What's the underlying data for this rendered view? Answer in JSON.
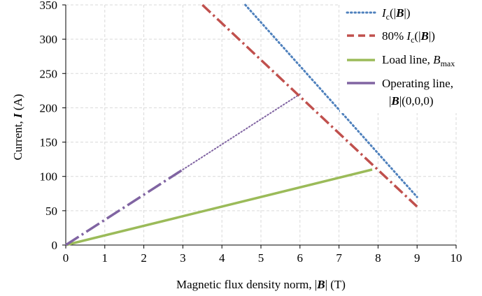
{
  "chart_data": {
    "type": "line",
    "title": "",
    "xlabel": {
      "prefix": "Magnetic flux density norm, |",
      "symbol": "B",
      "suffix": "| (T)"
    },
    "ylabel": {
      "prefix": "Current, ",
      "symbol": "I",
      "suffix": " (A)"
    },
    "xlim": [
      0,
      10
    ],
    "ylim": [
      0,
      350
    ],
    "xticks": [
      0,
      1,
      2,
      3,
      4,
      5,
      6,
      7,
      8,
      9,
      10
    ],
    "yticks": [
      0,
      50,
      100,
      150,
      200,
      250,
      300,
      350
    ],
    "grid": true,
    "legend_position": "top-right",
    "series": [
      {
        "key": "ic",
        "legend": {
          "a": "I",
          "sub": "c",
          "b": "(|",
          "bold": "B",
          "c": "|)"
        },
        "color": "#4f81bd",
        "style": "dotted",
        "x": [
          4.6,
          9.0
        ],
        "y": [
          350,
          70
        ]
      },
      {
        "key": "ic80",
        "legend": {
          "pre": "80% ",
          "a": "I",
          "sub": "c",
          "b": "(|",
          "bold": "B",
          "c": "|)"
        },
        "color": "#c0504d",
        "style": "dash-dot",
        "x": [
          3.5,
          9.0
        ],
        "y": [
          350,
          56
        ]
      },
      {
        "key": "load",
        "legend": {
          "text": "Load line, ",
          "a": "B",
          "sub": "max"
        },
        "color": "#9bbb59",
        "style": "solid",
        "x": [
          0,
          7.85
        ],
        "y": [
          0,
          110
        ]
      },
      {
        "key": "operating",
        "legend": {
          "text": "Operating line,",
          "line2a": "|",
          "bold": "B",
          "line2b": "|(0,0,0)"
        },
        "color": "#8064a2",
        "style": "long-dash-dot",
        "x": [
          0,
          3.0
        ],
        "y": [
          0,
          110
        ],
        "extension": {
          "style": "dotted",
          "x": [
            3.0,
            6.0
          ],
          "y": [
            110,
            220
          ]
        }
      }
    ]
  }
}
